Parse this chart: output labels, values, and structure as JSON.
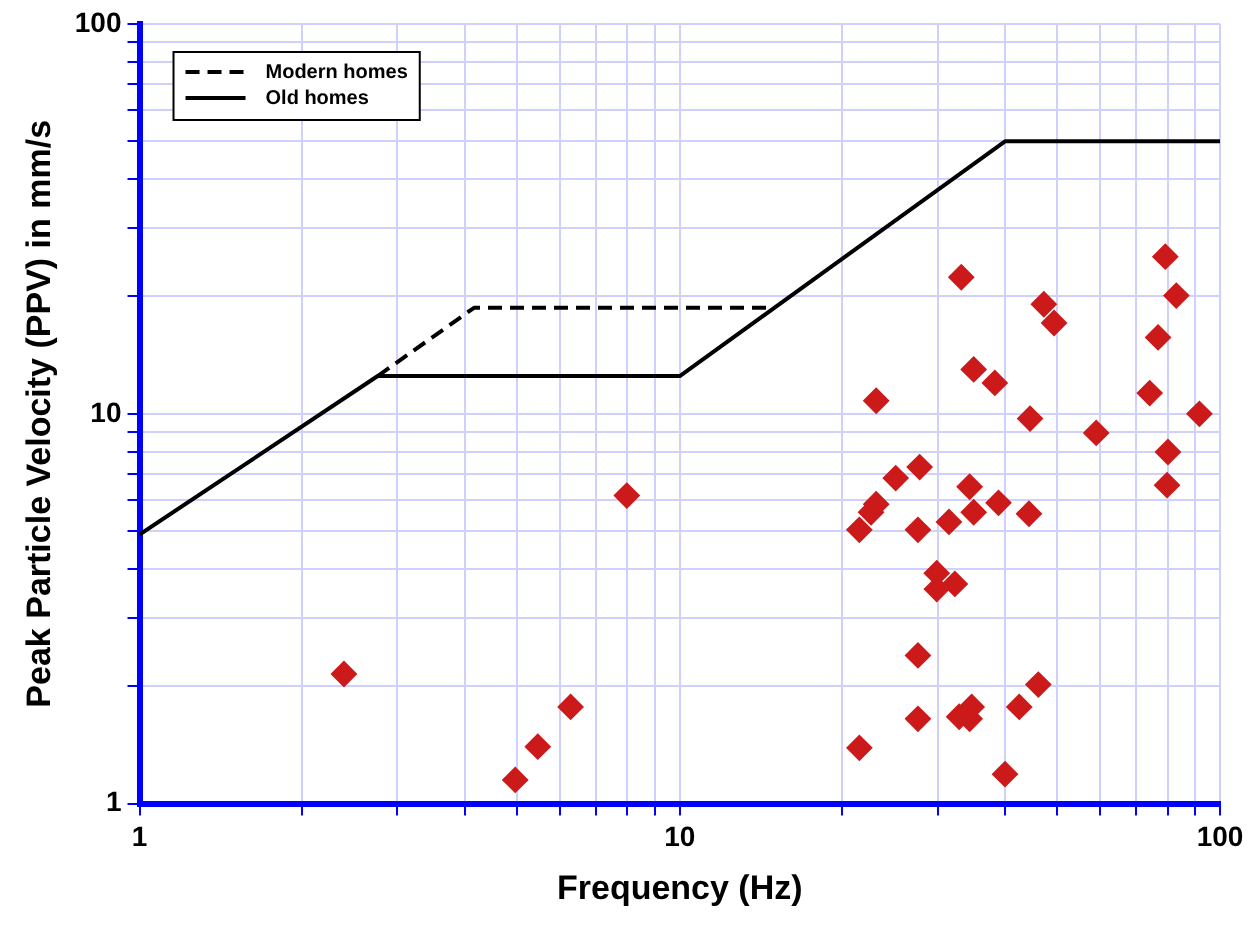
{
  "chart_data": {
    "type": "scatter",
    "xlabel": "Frequency (Hz)",
    "ylabel": "Peak Particle Velocity (PPV) in mm/s",
    "log": "xy",
    "grid": true,
    "legend": "top left",
    "xlim": [
      1,
      100
    ],
    "ylim": [
      1,
      100
    ],
    "xticks": [
      1,
      {
        "value": 2,
        "label": null
      },
      {
        "value": 3,
        "label": null
      },
      {
        "value": 4,
        "label": null
      },
      {
        "value": 5,
        "label": null
      },
      {
        "value": 6,
        "label": null
      },
      {
        "value": 7,
        "label": null
      },
      {
        "value": 8,
        "label": null
      },
      {
        "value": 9,
        "label": null
      },
      10,
      {
        "value": 20,
        "label": null
      },
      {
        "value": 30,
        "label": null
      },
      {
        "value": 40,
        "label": null
      },
      {
        "value": 50,
        "label": null
      },
      {
        "value": 60,
        "label": null
      },
      {
        "value": 70,
        "label": null
      },
      {
        "value": 80,
        "label": null
      },
      {
        "value": 90,
        "label": null
      },
      100
    ],
    "yticks": [
      1,
      {
        "value": 2,
        "label": null
      },
      {
        "value": 3,
        "label": null
      },
      {
        "value": 4,
        "label": null
      },
      {
        "value": 5,
        "label": null
      },
      {
        "value": 6,
        "label": null
      },
      {
        "value": 7,
        "label": null
      },
      {
        "value": 8,
        "label": null
      },
      {
        "value": 9,
        "label": null
      },
      10,
      {
        "value": 20,
        "label": null
      },
      {
        "value": 30,
        "label": null
      },
      {
        "value": 40,
        "label": null
      },
      {
        "value": 50,
        "label": null
      },
      {
        "value": 60,
        "label": null
      },
      {
        "value": 70,
        "label": null
      },
      {
        "value": 80,
        "label": null
      },
      {
        "value": 90,
        "label": null
      },
      100
    ],
    "series": [
      {
        "name": "Modern homes",
        "type": "line",
        "marker": "none",
        "line_style": "dashed",
        "color": "#000000",
        "x": [
          2.76,
          4.16,
          15
        ],
        "values": [
          12.5,
          18.7,
          18.7
        ]
      },
      {
        "name": "Old homes",
        "type": "line",
        "marker": "none",
        "line_style": "solid",
        "color": "#000000",
        "x": [
          1,
          2.76,
          10,
          40,
          100
        ],
        "values": [
          4.9,
          12.5,
          12.5,
          50,
          50
        ]
      },
      {
        "marker": "diamond",
        "color": "#cc1a1a",
        "x": [
          2.39,
          4.96,
          5.46,
          6.28,
          7.98,
          21.5,
          21.5,
          22.6,
          23.1,
          23.1,
          25.1,
          27.6,
          27.6,
          27.6,
          27.8,
          29.9,
          29.9,
          31.5,
          32.3,
          33.2,
          32.9,
          34.7,
          34.4,
          34.4,
          35,
          35,
          38.3,
          38.9,
          40,
          42.5,
          44.5,
          44.3,
          46.1,
          47.2,
          49.3,
          59,
          74.1,
          76.8,
          79.2,
          83,
          80.1,
          79.8,
          91.6
        ],
        "values": [
          2.15,
          1.15,
          1.4,
          1.77,
          6.17,
          1.39,
          5.04,
          5.59,
          5.86,
          10.8,
          6.84,
          5.04,
          2.4,
          1.65,
          7.3,
          3.9,
          3.55,
          5.28,
          3.66,
          22.4,
          1.67,
          1.77,
          1.65,
          6.5,
          5.59,
          13,
          12,
          5.91,
          1.19,
          1.77,
          9.72,
          5.54,
          2.02,
          19.1,
          17.1,
          8.93,
          11.3,
          15.7,
          25.3,
          20.1,
          7.98,
          6.56,
          10
        ]
      }
    ]
  }
}
